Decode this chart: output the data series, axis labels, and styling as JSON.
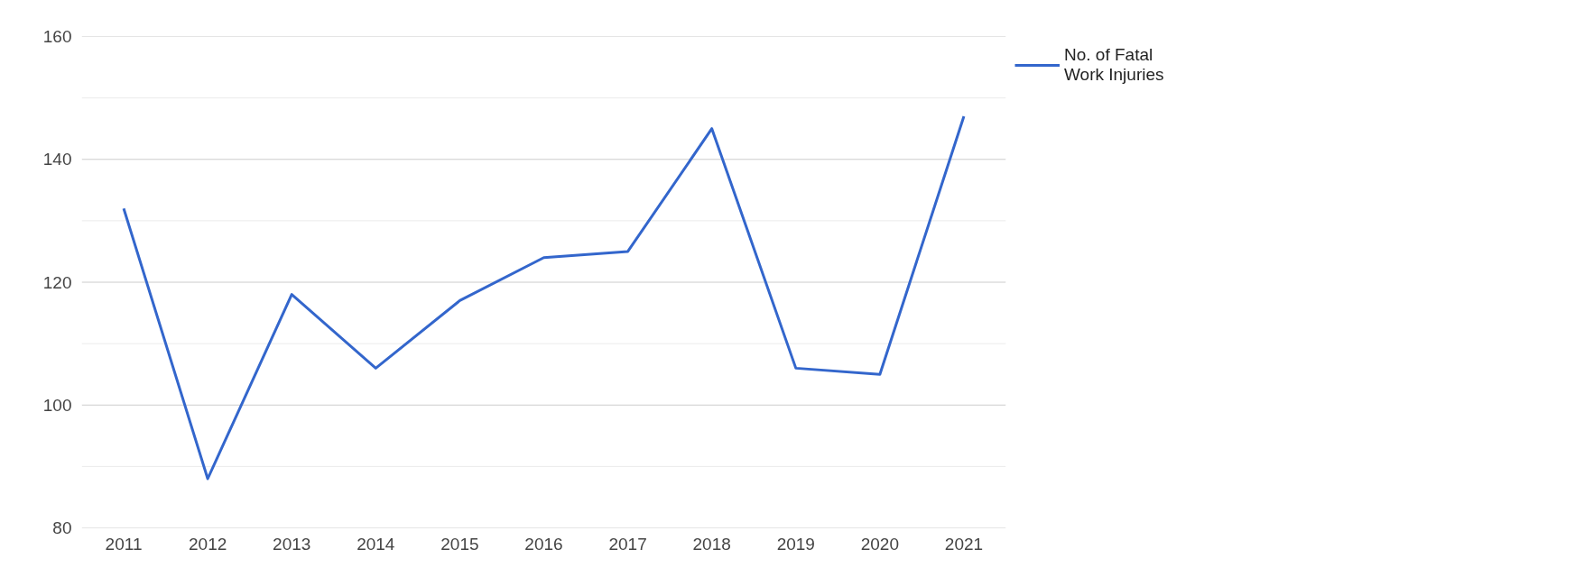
{
  "chart_data": {
    "type": "line",
    "categories": [
      "2011",
      "2012",
      "2013",
      "2014",
      "2015",
      "2016",
      "2017",
      "2018",
      "2019",
      "2020",
      "2021"
    ],
    "series": [
      {
        "name": "No. of Fatal Work Injuries",
        "color": "#3366cc",
        "values": [
          132,
          88,
          118,
          106,
          117,
          124,
          125,
          145,
          106,
          105,
          147
        ]
      }
    ],
    "ylim": [
      80,
      160
    ],
    "yticks": [
      80,
      {
        "value": 90,
        "label": null
      },
      100,
      {
        "value": 110,
        "label": null
      },
      120,
      {
        "value": 130,
        "label": null
      },
      140,
      {
        "value": 150,
        "label": null
      },
      160
    ],
    "grid": "y",
    "legend": "top right",
    "marker": "none",
    "line_style": "solid"
  }
}
